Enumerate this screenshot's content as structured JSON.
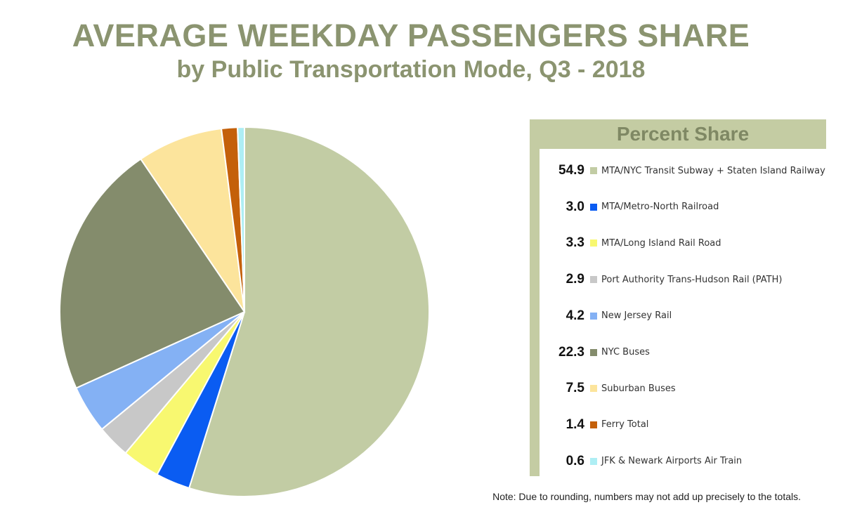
{
  "chart_data": {
    "type": "pie",
    "title": "AVERAGE WEEKDAY PASSENGERS SHARE",
    "subtitle": "by Public Transportation Mode, Q3 - 2018",
    "legend_title": "Percent Share",
    "legend_placement": "right",
    "note": "Note: Due to rounding, numbers may not add up precisely to the totals.",
    "start_angle_deg": 0,
    "direction": "clockwise",
    "slices": [
      {
        "label": "MTA/NYC Transit Subway + Staten Island Railway",
        "display": "54.9",
        "value": 54.9,
        "color": "#c2cca4"
      },
      {
        "label": "MTA/Metro-North Railroad",
        "display": "3.0",
        "value": 3.0,
        "color": "#0a5cf2"
      },
      {
        "label": "MTA/Long Island Rail Road",
        "display": "3.3",
        "value": 3.3,
        "color": "#f8f870"
      },
      {
        "label": "Port Authority Trans-Hudson Rail (PATH)",
        "display": "2.9",
        "value": 2.9,
        "color": "#c8c8c8"
      },
      {
        "label": "New Jersey Rail",
        "display": "4.2",
        "value": 4.2,
        "color": "#84b1f4"
      },
      {
        "label": "NYC Buses",
        "display": "22.3",
        "value": 22.3,
        "color": "#848c6c"
      },
      {
        "label": "Suburban Buses",
        "display": "7.5",
        "value": 7.5,
        "color": "#fce49c"
      },
      {
        "label": "Ferry Total",
        "display": "1.4",
        "value": 1.4,
        "color": "#c4600a"
      },
      {
        "label": "JFK & Newark Airports Air Train",
        "display": "0.6",
        "value": 0.6,
        "color": "#aeeef4"
      }
    ]
  }
}
